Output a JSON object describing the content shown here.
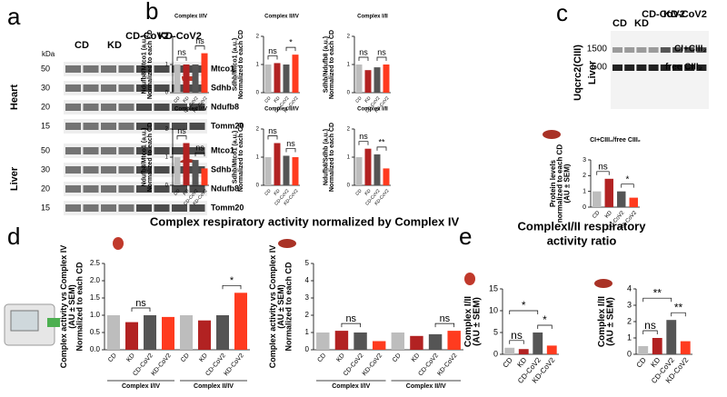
{
  "panels": [
    "a",
    "b",
    "c",
    "d",
    "e"
  ],
  "blot_a": {
    "kda": "kDa",
    "groups": [
      "CD",
      "KD",
      "CD-CoV2",
      "KD-CoV2"
    ],
    "tissues": [
      "Heart",
      "Liver"
    ],
    "heart_rows": [
      {
        "marker": 50,
        "protein": "Mtco1"
      },
      {
        "marker": 30,
        "protein": "Sdhb"
      },
      {
        "marker": 20,
        "protein": "Ndufb8"
      },
      {
        "marker": 15,
        "protein": "Tomm20"
      }
    ],
    "liver_rows": [
      {
        "marker": 50,
        "protein": "Mtco1"
      },
      {
        "marker": 30,
        "protein": "Sdhb"
      },
      {
        "marker": 20,
        "protein": "Ndufb8"
      },
      {
        "marker": 15,
        "protein": "Tomm20"
      }
    ]
  },
  "blot_c": {
    "groups": [
      "CD",
      "KD",
      "CD-CoV2",
      "KD-CoV2"
    ],
    "markers": [
      1500,
      500
    ],
    "bands": [
      "CI+CIII₂",
      "free CIII₂"
    ],
    "ylabel": "Uqcrc2(CIII)",
    "tissue": "Liver"
  },
  "titles": {
    "d": "Complex respiratory activity normalized by Complex IV",
    "e": [
      "ComplexI/II respiratory",
      "activity ratio"
    ]
  },
  "chart_data": [
    {
      "type": "bar",
      "title": "Complex I/IV",
      "ylabel": [
        "Ndufb8/Mtco1 (a.u.)",
        "Normalized to each CD"
      ],
      "categories": [
        "CD",
        "KD",
        "CD-CoV2",
        "KD-CoV2"
      ],
      "values": [
        1,
        1,
        1,
        1.4
      ],
      "colors": [
        "#bdbdbd",
        "#b22222",
        "#555555",
        "#ff3b1f"
      ],
      "ylim": [
        0,
        2
      ],
      "yticks": [
        0,
        1,
        2
      ],
      "annotations": [
        "ns",
        "ns"
      ]
    },
    {
      "type": "bar",
      "title": "Complex II/IV",
      "ylabel": [
        "Sdhb/Mtco1 (a.u.)",
        "Normalized to each CD"
      ],
      "categories": [
        "CD",
        "KD",
        "CD-CoV2",
        "KD-CoV2"
      ],
      "values": [
        1,
        1.05,
        1,
        1.35
      ],
      "colors": [
        "#bdbdbd",
        "#b22222",
        "#555555",
        "#ff3b1f"
      ],
      "ylim": [
        0,
        2
      ],
      "yticks": [
        0,
        1,
        2
      ],
      "annotations": [
        "ns",
        "*"
      ]
    },
    {
      "type": "bar",
      "title": "Complex I/II",
      "ylabel": [
        "Sdhb/Ndufb8 (a.u.)",
        "Normalized to each CD"
      ],
      "categories": [
        "CD",
        "KD",
        "CD-CoV2",
        "KD-CoV2"
      ],
      "values": [
        1,
        0.8,
        0.9,
        1
      ],
      "colors": [
        "#bdbdbd",
        "#b22222",
        "#555555",
        "#ff3b1f"
      ],
      "ylim": [
        0,
        2
      ],
      "yticks": [
        0,
        1,
        2
      ],
      "annotations": [
        "ns",
        "ns"
      ]
    },
    {
      "type": "bar",
      "title": "Complex I/IV",
      "ylabel": [
        "Ndufb8/Mtco1 (a.u.)",
        "Normalized to each CD"
      ],
      "categories": [
        "CD",
        "KD",
        "CD-CoV2",
        "KD-CoV2"
      ],
      "values": [
        1,
        1.5,
        0.9,
        0.6
      ],
      "colors": [
        "#bdbdbd",
        "#b22222",
        "#555555",
        "#ff3b1f"
      ],
      "ylim": [
        0,
        2
      ],
      "yticks": [
        0,
        1,
        2
      ],
      "annotations": [
        "ns",
        "ns"
      ]
    },
    {
      "type": "bar",
      "title": "Complex II/IV",
      "ylabel": [
        "Sdhb/Mtco1 (a.u.)",
        "Normalized to each CD"
      ],
      "categories": [
        "CD",
        "KD",
        "CD-CoV2",
        "KD-CoV2"
      ],
      "values": [
        1,
        1.5,
        1.05,
        1
      ],
      "colors": [
        "#bdbdbd",
        "#b22222",
        "#555555",
        "#ff3b1f"
      ],
      "ylim": [
        0,
        2
      ],
      "yticks": [
        0,
        1,
        2
      ],
      "annotations": [
        "ns",
        "ns"
      ]
    },
    {
      "type": "bar",
      "title": "Complex I/II",
      "ylabel": [
        "Ndufb8/Sdhb (a.u.)",
        "Normalized to each CD"
      ],
      "categories": [
        "CD",
        "KD",
        "CD-CoV2",
        "KD-CoV2"
      ],
      "values": [
        1,
        1.3,
        1.1,
        0.6
      ],
      "colors": [
        "#bdbdbd",
        "#b22222",
        "#555555",
        "#ff3b1f"
      ],
      "ylim": [
        0,
        2
      ],
      "yticks": [
        0,
        1,
        2
      ],
      "annotations": [
        "ns",
        "**"
      ]
    },
    {
      "type": "bar",
      "title": "CI+CIII₂/free CIII₂",
      "ylabel": [
        "Protein levels",
        "normalized to each CD",
        "(AU ± SEM)"
      ],
      "categories": [
        "CD",
        "KD",
        "CD-CoV2",
        "KD-CoV2"
      ],
      "values": [
        1,
        1.8,
        1,
        0.6
      ],
      "colors": [
        "#bdbdbd",
        "#b22222",
        "#555555",
        "#ff3b1f"
      ],
      "ylim": [
        0,
        3
      ],
      "yticks": [
        0,
        1,
        2,
        3
      ],
      "annotations": [
        "ns",
        "*"
      ]
    },
    {
      "type": "bar",
      "ylabel": [
        "Complex activity vs Complex IV",
        "(AU ± SEM)",
        "Normalized to each CD"
      ],
      "categories": [
        "CD",
        "KD",
        "CD-CoV2",
        "KD-CoV2",
        "CD",
        "KD",
        "CD-CoV2",
        "KD-CoV2"
      ],
      "groups": [
        "Complex I/IV",
        "Complex II/IV"
      ],
      "values": [
        1,
        0.8,
        1,
        0.95,
        1,
        0.85,
        1,
        1.65
      ],
      "colors": [
        "#bdbdbd",
        "#b22222",
        "#555555",
        "#ff3b1f",
        "#bdbdbd",
        "#b22222",
        "#555555",
        "#ff3b1f"
      ],
      "ylim": [
        0,
        2.5
      ],
      "yticks": [
        {
          "value": 0,
          "label": "0.0"
        },
        {
          "value": 0.5,
          "label": "0.5"
        },
        {
          "value": 1,
          "label": "1.0"
        },
        {
          "value": 1.5,
          "label": "1.5"
        },
        {
          "value": 2,
          "label": "2.0"
        },
        {
          "value": 2.5,
          "label": "2.5"
        }
      ],
      "annotations": [
        "ns",
        "*"
      ]
    },
    {
      "type": "bar",
      "ylabel": [
        "Complex activity vs Complex IV",
        "(AU ± SEM)",
        "Normalized to each CD"
      ],
      "categories": [
        "CD",
        "KD",
        "CD-CoV2",
        "KD-CoV2",
        "CD",
        "KD",
        "CD-CoV2",
        "KD-CoV2"
      ],
      "groups": [
        "Complex I/IV",
        "Complex II/IV"
      ],
      "values": [
        1,
        1.1,
        1,
        0.5,
        1,
        0.8,
        0.9,
        1.1
      ],
      "colors": [
        "#bdbdbd",
        "#b22222",
        "#555555",
        "#ff3b1f",
        "#bdbdbd",
        "#b22222",
        "#555555",
        "#ff3b1f"
      ],
      "ylim": [
        0,
        5
      ],
      "yticks": [
        0,
        1,
        2,
        3,
        4,
        5
      ],
      "annotations": [
        "ns",
        "ns"
      ]
    },
    {
      "type": "bar",
      "ylabel": [
        "Complex I/II",
        "(AU ± SEM)"
      ],
      "categories": [
        "CD",
        "KD",
        "CD-CoV2",
        "KD-CoV2"
      ],
      "values": [
        1.5,
        1.2,
        5,
        2
      ],
      "colors": [
        "#bdbdbd",
        "#b22222",
        "#555555",
        "#ff3b1f"
      ],
      "ylim": [
        0,
        15
      ],
      "yticks": [
        0,
        5,
        10,
        15
      ],
      "annotations": [
        "*",
        "ns",
        "*"
      ]
    },
    {
      "type": "bar",
      "ylabel": [
        "Complex I/II",
        "(AU ± SEM)"
      ],
      "categories": [
        "CD",
        "KD",
        "CD-CoV2",
        "KD-CoV2"
      ],
      "values": [
        0.5,
        1,
        2.1,
        0.8
      ],
      "colors": [
        "#bdbdbd",
        "#b22222",
        "#555555",
        "#ff3b1f"
      ],
      "ylim": [
        0,
        4
      ],
      "yticks": [
        0,
        1,
        2,
        3,
        4
      ],
      "annotations": [
        "**",
        "ns",
        "**"
      ]
    }
  ]
}
